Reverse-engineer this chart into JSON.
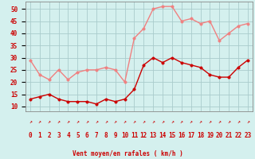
{
  "xlabel": "Vent moyen/en rafales ( km/h )",
  "x": [
    0,
    1,
    2,
    3,
    4,
    5,
    6,
    7,
    8,
    9,
    10,
    11,
    12,
    13,
    14,
    15,
    16,
    17,
    18,
    19,
    20,
    21,
    22,
    23
  ],
  "y_mean": [
    13,
    14,
    15,
    13,
    12,
    12,
    12,
    11,
    13,
    12,
    13,
    17,
    27,
    30,
    28,
    30,
    28,
    27,
    26,
    23,
    22,
    22,
    26,
    29
  ],
  "y_gust": [
    29,
    23,
    21,
    25,
    21,
    24,
    25,
    25,
    26,
    25,
    20,
    38,
    42,
    50,
    51,
    51,
    45,
    46,
    44,
    45,
    37,
    40,
    43,
    44
  ],
  "color_mean": "#cc0000",
  "color_gust": "#f08080",
  "bg_color": "#d4f0ee",
  "grid_color": "#aacccc",
  "ylim_min": 8,
  "ylim_max": 53,
  "yticks": [
    10,
    15,
    20,
    25,
    30,
    35,
    40,
    45,
    50
  ],
  "marker_size": 2.5,
  "linewidth": 1.0,
  "label_fontsize": 5.5,
  "tick_fontsize": 5.5,
  "arrow_char": "↗"
}
